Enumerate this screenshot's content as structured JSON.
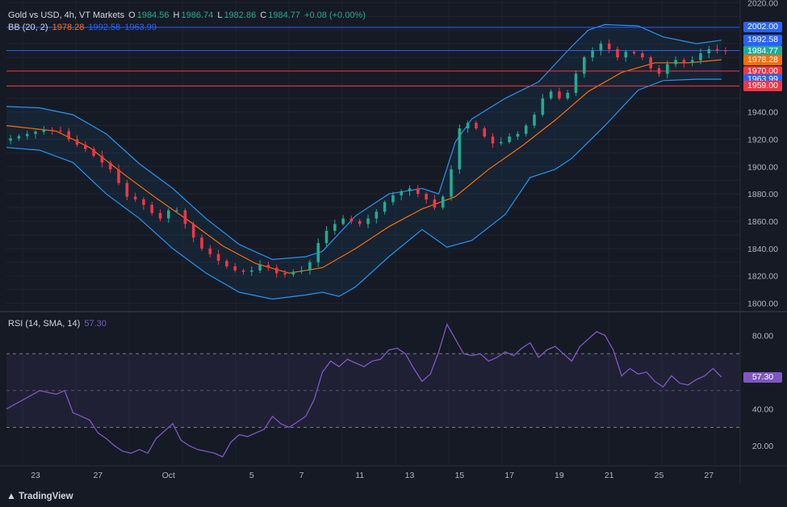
{
  "header": {
    "symbol": "Gold vs USD, 4h, VT Markets",
    "open_label": "O",
    "open": "1984.56",
    "high_label": "H",
    "high": "1986.74",
    "low_label": "L",
    "low": "1982.86",
    "close_label": "C",
    "close": "1984.77",
    "change": "+0.08 (+0.00%)"
  },
  "bb_legend": {
    "label": "BB (20, 2)",
    "basis": "1978.28",
    "upper": "1992.58",
    "lower": "1963.99"
  },
  "rsi_legend": {
    "label": "RSI (14, SMA, 14)",
    "value": "57.30"
  },
  "branding": "TradingView",
  "colors": {
    "background": "#161a25",
    "up": "#22ab94",
    "down": "#f23645",
    "basis": "#ff6d00",
    "bands": "#2962ff",
    "rsi": "#7e57c2",
    "hline_blue": "#2962ff",
    "hline_red": "#f23645"
  },
  "price_tags": [
    {
      "label": "2002.00",
      "color": "#2962ff"
    },
    {
      "label": "1992.58",
      "color": "#2962ff"
    },
    {
      "label": "1985.00",
      "color": "#2962ff"
    },
    {
      "label": "1984.77",
      "color": "#22ab94"
    },
    {
      "label": "1978.28",
      "color": "#ff6d00"
    },
    {
      "label": "1970.00",
      "color": "#f23645"
    },
    {
      "label": "1963.99",
      "color": "#2962ff"
    },
    {
      "label": "1959.00",
      "color": "#f23645"
    }
  ],
  "rsi_tag": {
    "label": "57.30",
    "color": "#7e57c2"
  },
  "chart_data": {
    "type": "candlestick",
    "price_ylim": [
      1795,
      2022
    ],
    "price_ticks": [
      "2020.00",
      "1940.00",
      "1920.00",
      "1900.00",
      "1880.00",
      "1860.00",
      "1840.00",
      "1820.00",
      "1800.00"
    ],
    "x_ticks": [
      "23",
      "27",
      "Oct",
      "5",
      "7",
      "11",
      "13",
      "15",
      "17",
      "19",
      "21",
      "25",
      "27"
    ],
    "horizontal_levels": [
      2002,
      1985,
      1970,
      1959
    ],
    "price_path": [
      [
        0,
        1919
      ],
      [
        3,
        1924
      ],
      [
        5,
        1927
      ],
      [
        7,
        1926
      ],
      [
        8,
        1920
      ],
      [
        9,
        1916
      ],
      [
        10,
        1913
      ],
      [
        11,
        1908
      ],
      [
        13,
        1898
      ],
      [
        14,
        1888
      ],
      [
        15,
        1878
      ],
      [
        16,
        1876
      ],
      [
        17,
        1872
      ],
      [
        18,
        1866
      ],
      [
        19,
        1862
      ],
      [
        20,
        1868
      ],
      [
        20.5,
        1874
      ],
      [
        21,
        1868
      ],
      [
        22,
        1858
      ],
      [
        23,
        1848
      ],
      [
        24,
        1840
      ],
      [
        25,
        1836
      ],
      [
        26,
        1831
      ],
      [
        27,
        1827
      ],
      [
        28,
        1824
      ],
      [
        29,
        1823
      ],
      [
        30,
        1824
      ],
      [
        31,
        1828
      ],
      [
        32,
        1826
      ],
      [
        33,
        1822
      ],
      [
        34,
        1821
      ],
      [
        35,
        1823
      ],
      [
        36,
        1824
      ],
      [
        37,
        1830
      ],
      [
        38,
        1844
      ],
      [
        39,
        1853
      ],
      [
        40,
        1858
      ],
      [
        41,
        1862
      ],
      [
        42,
        1860
      ],
      [
        43,
        1858
      ],
      [
        44,
        1862
      ],
      [
        45,
        1867
      ],
      [
        46,
        1874
      ],
      [
        47,
        1879
      ],
      [
        48,
        1882
      ],
      [
        49,
        1884
      ],
      [
        50,
        1880
      ],
      [
        51,
        1876
      ],
      [
        52,
        1870
      ],
      [
        53,
        1878
      ],
      [
        54,
        1898
      ],
      [
        55,
        1928
      ],
      [
        56,
        1932
      ],
      [
        57,
        1928
      ],
      [
        58,
        1922
      ],
      [
        59,
        1917
      ],
      [
        60,
        1918
      ],
      [
        61,
        1922
      ],
      [
        62,
        1924
      ],
      [
        63,
        1930
      ],
      [
        64,
        1938
      ],
      [
        65,
        1950
      ],
      [
        66,
        1955
      ],
      [
        67,
        1950
      ],
      [
        68,
        1954
      ],
      [
        69,
        1968
      ],
      [
        70,
        1980
      ],
      [
        71,
        1985
      ],
      [
        72,
        1990
      ],
      [
        73,
        1986
      ],
      [
        74,
        1980
      ],
      [
        75,
        1984
      ],
      [
        76,
        1983
      ],
      [
        77,
        1980
      ],
      [
        78,
        1972
      ],
      [
        79,
        1968
      ],
      [
        80,
        1975
      ],
      [
        81,
        1978
      ],
      [
        82,
        1976
      ],
      [
        83,
        1978
      ],
      [
        84,
        1983
      ],
      [
        85,
        1986
      ],
      [
        86,
        1985
      ],
      [
        87,
        1984.77
      ]
    ],
    "bb_basis": [
      [
        0,
        1930
      ],
      [
        6,
        1926
      ],
      [
        10,
        1914
      ],
      [
        14,
        1895
      ],
      [
        18,
        1877
      ],
      [
        22,
        1860
      ],
      [
        26,
        1842
      ],
      [
        30,
        1829
      ],
      [
        34,
        1822
      ],
      [
        38,
        1826
      ],
      [
        42,
        1840
      ],
      [
        46,
        1856
      ],
      [
        50,
        1869
      ],
      [
        54,
        1878
      ],
      [
        58,
        1898
      ],
      [
        62,
        1915
      ],
      [
        66,
        1934
      ],
      [
        70,
        1955
      ],
      [
        74,
        1969
      ],
      [
        78,
        1976
      ],
      [
        82,
        1976
      ],
      [
        86,
        1978.28
      ]
    ],
    "bb_upper": [
      [
        0,
        1944
      ],
      [
        4,
        1943
      ],
      [
        8,
        1938
      ],
      [
        12,
        1924
      ],
      [
        16,
        1902
      ],
      [
        20,
        1884
      ],
      [
        24,
        1862
      ],
      [
        28,
        1843
      ],
      [
        32,
        1832
      ],
      [
        36,
        1834
      ],
      [
        38,
        1838
      ],
      [
        42,
        1864
      ],
      [
        46,
        1880
      ],
      [
        50,
        1884
      ],
      [
        52,
        1880
      ],
      [
        54,
        1918
      ],
      [
        56,
        1935
      ],
      [
        60,
        1950
      ],
      [
        64,
        1962
      ],
      [
        68,
        1988
      ],
      [
        70,
        2000
      ],
      [
        72,
        2004
      ],
      [
        76,
        2003
      ],
      [
        79,
        1995
      ],
      [
        83,
        1990
      ],
      [
        86,
        1992.58
      ]
    ],
    "bb_lower": [
      [
        0,
        1914
      ],
      [
        4,
        1912
      ],
      [
        8,
        1903
      ],
      [
        12,
        1880
      ],
      [
        16,
        1862
      ],
      [
        20,
        1840
      ],
      [
        24,
        1822
      ],
      [
        28,
        1808
      ],
      [
        32,
        1803
      ],
      [
        36,
        1806
      ],
      [
        38,
        1808
      ],
      [
        40,
        1805
      ],
      [
        42,
        1812
      ],
      [
        46,
        1834
      ],
      [
        50,
        1854
      ],
      [
        53,
        1841
      ],
      [
        56,
        1846
      ],
      [
        60,
        1865
      ],
      [
        63,
        1892
      ],
      [
        66,
        1898
      ],
      [
        68,
        1906
      ],
      [
        72,
        1930
      ],
      [
        76,
        1956
      ],
      [
        79,
        1963
      ],
      [
        83,
        1964
      ],
      [
        86,
        1963.99
      ]
    ],
    "rsi_ylim": [
      10,
      92
    ],
    "rsi_ticks": [
      "80.00",
      "40.00",
      "20.00"
    ],
    "rsi_band": [
      30,
      70
    ],
    "rsi_mid": 50,
    "rsi_values": [
      [
        0,
        40
      ],
      [
        2,
        45
      ],
      [
        4,
        50
      ],
      [
        5,
        49
      ],
      [
        6,
        48
      ],
      [
        7,
        50
      ],
      [
        8,
        38
      ],
      [
        9,
        36
      ],
      [
        10,
        34
      ],
      [
        11,
        27
      ],
      [
        12,
        24
      ],
      [
        13,
        20
      ],
      [
        14,
        17
      ],
      [
        15,
        16
      ],
      [
        16,
        18
      ],
      [
        17,
        16
      ],
      [
        18,
        24
      ],
      [
        19,
        28
      ],
      [
        20,
        32
      ],
      [
        21,
        23
      ],
      [
        22,
        20
      ],
      [
        23,
        18
      ],
      [
        24,
        17
      ],
      [
        25,
        16
      ],
      [
        26,
        14
      ],
      [
        27,
        22
      ],
      [
        28,
        26
      ],
      [
        29,
        25
      ],
      [
        30,
        27
      ],
      [
        31,
        29
      ],
      [
        32,
        36
      ],
      [
        33,
        32
      ],
      [
        34,
        30
      ],
      [
        35,
        33
      ],
      [
        36,
        36
      ],
      [
        37,
        45
      ],
      [
        38,
        60
      ],
      [
        39,
        66
      ],
      [
        40,
        63
      ],
      [
        41,
        67
      ],
      [
        42,
        65
      ],
      [
        43,
        63
      ],
      [
        44,
        66
      ],
      [
        45,
        67
      ],
      [
        46,
        72
      ],
      [
        47,
        73
      ],
      [
        48,
        70
      ],
      [
        49,
        62
      ],
      [
        50,
        55
      ],
      [
        51,
        59
      ],
      [
        52,
        71
      ],
      [
        53,
        86
      ],
      [
        54,
        78
      ],
      [
        55,
        70
      ],
      [
        56,
        69
      ],
      [
        57,
        70
      ],
      [
        58,
        66
      ],
      [
        59,
        68
      ],
      [
        60,
        71
      ],
      [
        61,
        69
      ],
      [
        62,
        73
      ],
      [
        63,
        76
      ],
      [
        64,
        68
      ],
      [
        65,
        72
      ],
      [
        66,
        74
      ],
      [
        67,
        70
      ],
      [
        68,
        66
      ],
      [
        69,
        74
      ],
      [
        70,
        78
      ],
      [
        71,
        82
      ],
      [
        72,
        80
      ],
      [
        73,
        72
      ],
      [
        74,
        58
      ],
      [
        75,
        62
      ],
      [
        76,
        59
      ],
      [
        77,
        60
      ],
      [
        78,
        55
      ],
      [
        79,
        52
      ],
      [
        80,
        58
      ],
      [
        81,
        54
      ],
      [
        82,
        53
      ],
      [
        83,
        56
      ],
      [
        84,
        58
      ],
      [
        85,
        62
      ],
      [
        86,
        57.3
      ]
    ]
  }
}
